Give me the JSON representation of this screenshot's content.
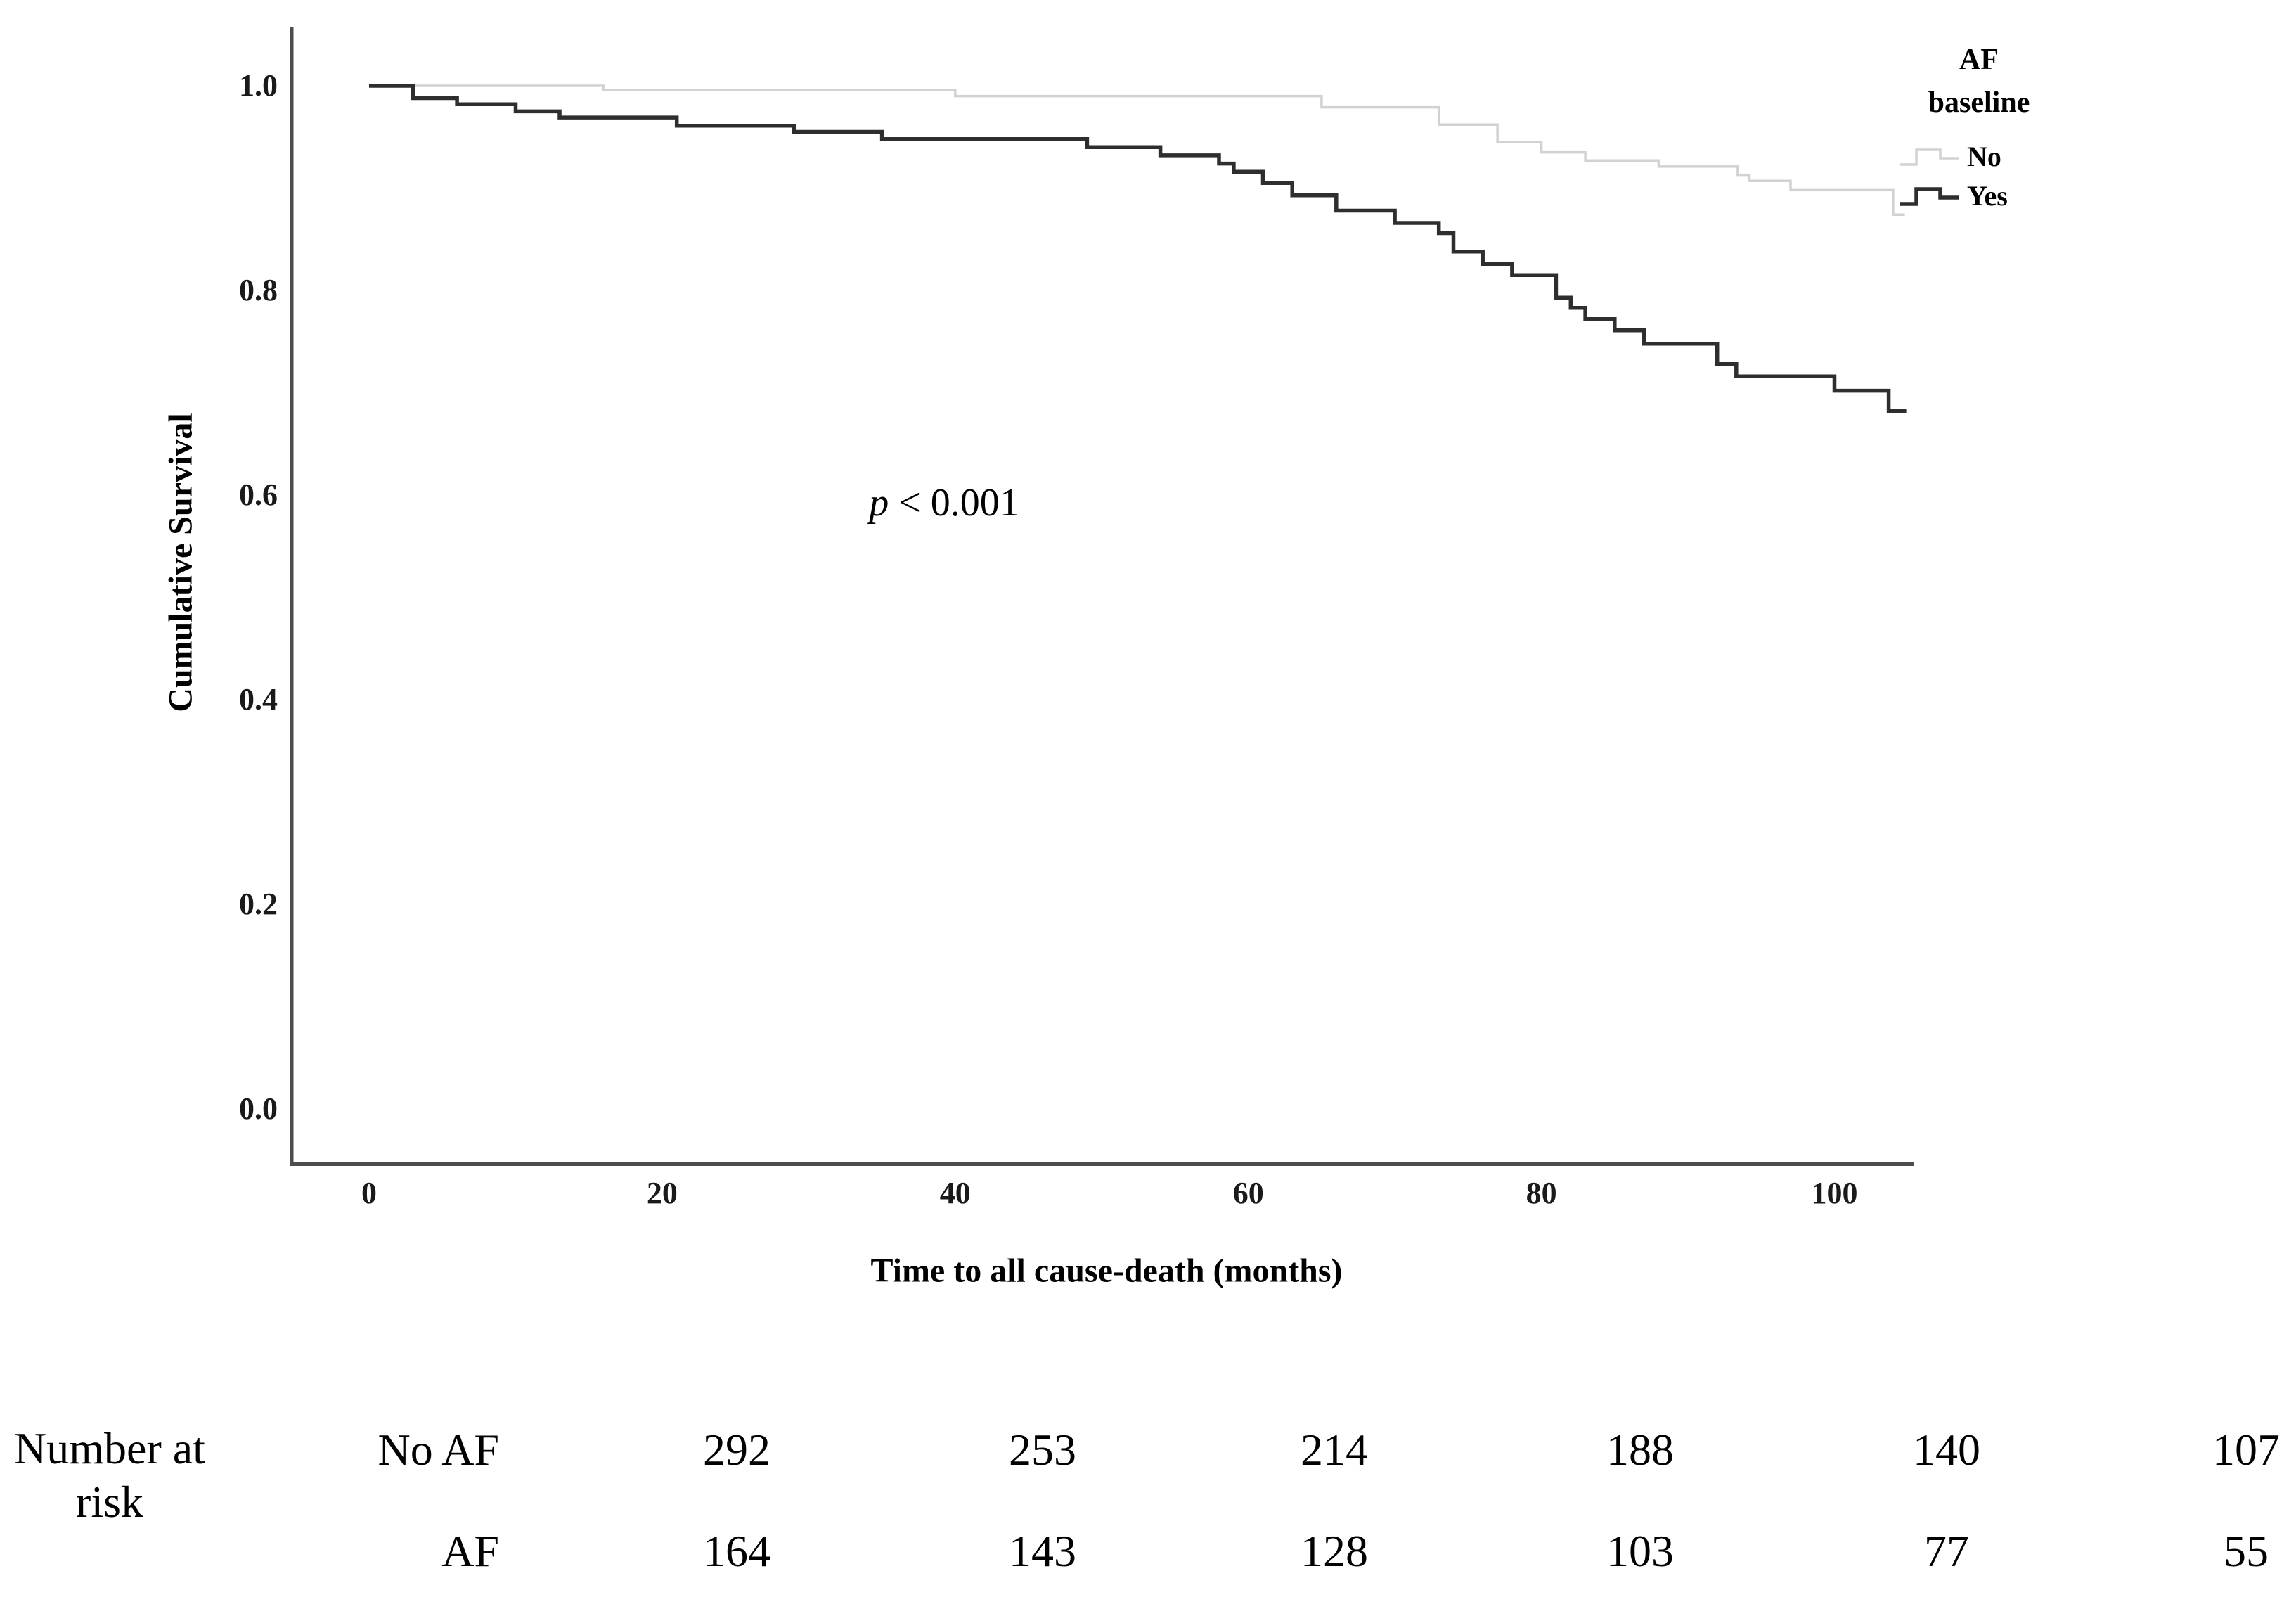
{
  "chart_data": {
    "type": "line",
    "subtype": "kaplan-meier-step",
    "title": "",
    "xlabel": "Time to all cause-death (months)",
    "ylabel": "Cumulative Survival",
    "xlim": [
      0,
      105.4
    ],
    "ylim": [
      0.0,
      1.06
    ],
    "x_ticks": [
      0,
      20,
      40,
      60,
      80,
      100
    ],
    "y_ticks": [
      1.0,
      0.8,
      0.6,
      0.4,
      0.2,
      0.0
    ],
    "grid": false,
    "legend_position": "top-right",
    "legend": {
      "title_lines": [
        "AF",
        "baseline"
      ]
    },
    "annotation": {
      "symbol": "p",
      "text": "< 0.001"
    },
    "colors": {
      "axis": "#4d4d4d",
      "no_curve": "#d2d2d2",
      "yes_curve": "#2e2e2e"
    },
    "series": [
      {
        "name": "No",
        "color": "#d2d2d2",
        "stroke_width": 3.5,
        "end_month": 104.8,
        "points": [
          [
            0,
            1.0
          ],
          [
            16,
            0.996
          ],
          [
            40,
            0.99
          ],
          [
            65,
            0.979
          ],
          [
            73,
            0.962
          ],
          [
            77,
            0.945
          ],
          [
            80,
            0.935
          ],
          [
            83,
            0.927
          ],
          [
            88,
            0.921
          ],
          [
            93.4,
            0.913
          ],
          [
            94.2,
            0.907
          ],
          [
            97,
            0.898
          ],
          [
            104,
            0.874
          ]
        ]
      },
      {
        "name": "Yes",
        "color": "#2e2e2e",
        "stroke_width": 5.5,
        "end_month": 104.9,
        "points": [
          [
            0,
            1.0
          ],
          [
            3,
            0.988
          ],
          [
            6,
            0.982
          ],
          [
            10,
            0.975
          ],
          [
            13,
            0.969
          ],
          [
            21,
            0.961
          ],
          [
            29,
            0.955
          ],
          [
            35,
            0.948
          ],
          [
            49,
            0.94
          ],
          [
            54,
            0.932
          ],
          [
            58,
            0.924
          ],
          [
            59,
            0.916
          ],
          [
            61,
            0.905
          ],
          [
            63,
            0.893
          ],
          [
            66,
            0.878
          ],
          [
            70,
            0.866
          ],
          [
            73,
            0.856
          ],
          [
            74,
            0.838
          ],
          [
            76,
            0.826
          ],
          [
            78,
            0.815
          ],
          [
            81,
            0.793
          ],
          [
            82,
            0.783
          ],
          [
            83,
            0.772
          ],
          [
            85,
            0.761
          ],
          [
            87,
            0.748
          ],
          [
            92,
            0.728
          ],
          [
            93.3,
            0.716
          ],
          [
            100,
            0.702
          ],
          [
            103.7,
            0.682
          ]
        ]
      }
    ]
  },
  "risk_table": {
    "header_lines": [
      "Number at",
      "risk"
    ],
    "rows": [
      {
        "label": "No AF",
        "values": [
          "292",
          "253",
          "214",
          "188",
          "140",
          "107"
        ]
      },
      {
        "label": "AF",
        "values": [
          "164",
          "143",
          "128",
          "103",
          "77",
          "55"
        ]
      }
    ]
  }
}
